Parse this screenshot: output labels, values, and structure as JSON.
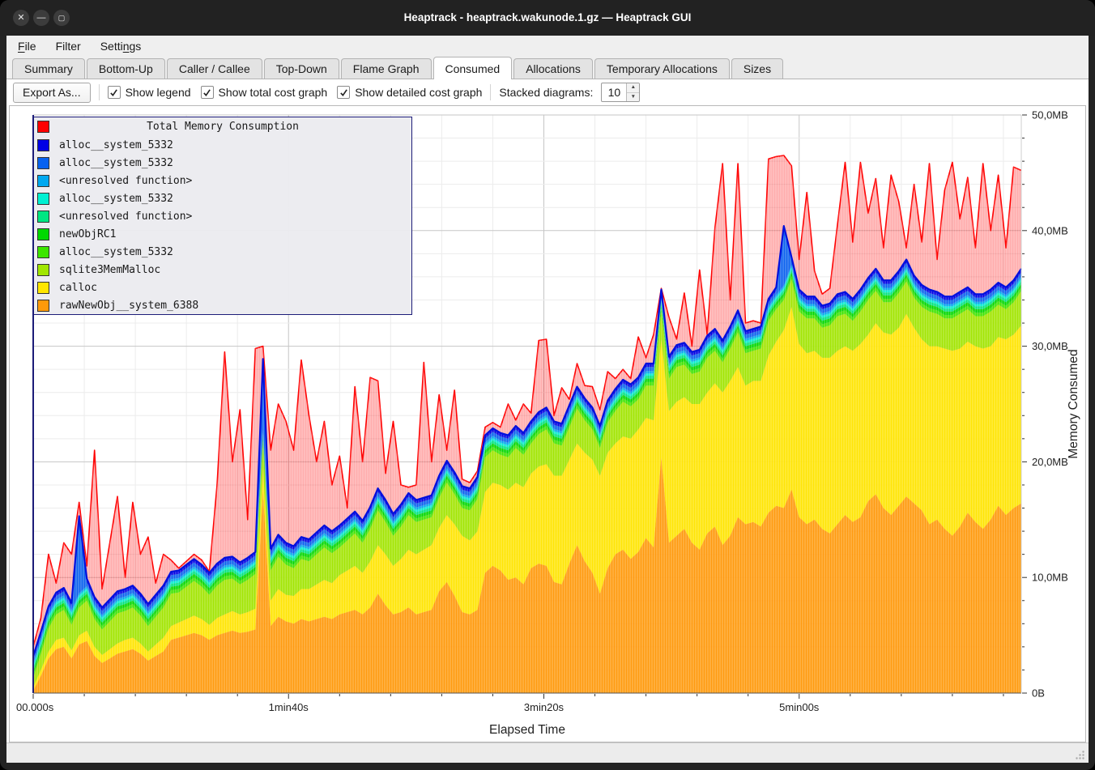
{
  "window": {
    "title": "Heaptrack - heaptrack.wakunode.1.gz — Heaptrack GUI",
    "controls": [
      {
        "name": "close",
        "glyph": "✕"
      },
      {
        "name": "minimize",
        "glyph": "—"
      },
      {
        "name": "maximize",
        "glyph": "▢"
      }
    ]
  },
  "menu": {
    "items": [
      {
        "name": "file",
        "pre": "",
        "key": "F",
        "post": "ile"
      },
      {
        "name": "filter",
        "pre": "Filter",
        "key": "",
        "post": ""
      },
      {
        "name": "settings",
        "pre": "Setti",
        "key": "n",
        "post": "gs"
      }
    ]
  },
  "tabs": {
    "active": "Consumed",
    "items": [
      "Summary",
      "Bottom-Up",
      "Caller / Callee",
      "Top-Down",
      "Flame Graph",
      "Consumed",
      "Allocations",
      "Temporary Allocations",
      "Sizes"
    ]
  },
  "toolbar": {
    "export_label": "Export As...",
    "checkboxes": [
      {
        "label": "Show legend",
        "checked": true
      },
      {
        "label": "Show total cost graph",
        "checked": true
      },
      {
        "label": "Show detailed cost graph",
        "checked": true
      }
    ],
    "stacked_label": "Stacked diagrams:",
    "stacked_value": "10"
  },
  "chart_data": {
    "type": "area",
    "stacked": true,
    "title": "Total Memory Consumption",
    "xlabel": "Elapsed Time",
    "ylabel": "Memory Consumed",
    "x_start": 0,
    "x_step": 3,
    "ylim_mb": [
      0,
      50
    ],
    "grid": {
      "minor_mb": 2,
      "major_mb": 10,
      "minor_s": 20,
      "major_s": 100
    },
    "x_ticks": [
      [
        0,
        "00.000s"
      ],
      [
        100,
        "1min40s"
      ],
      [
        200,
        "3min20s"
      ],
      [
        300,
        "5min00s"
      ]
    ],
    "y_ticks": [
      [
        0,
        "0B"
      ],
      [
        10,
        "10,0MB"
      ],
      [
        20,
        "20,0MB"
      ],
      [
        30,
        "30,0MB"
      ],
      [
        40,
        "40,0MB"
      ],
      [
        50,
        "50,0MB"
      ]
    ],
    "total": {
      "name": "Total Memory Consumption",
      "color": "#ff0000",
      "values": [
        4,
        6.5,
        12,
        9.5,
        13,
        12,
        16.5,
        11,
        21,
        9,
        13,
        17,
        10,
        16.5,
        12,
        13.5,
        9.5,
        12,
        11.5,
        10.8,
        11.4,
        12,
        11.5,
        10.5,
        18,
        29.5,
        20,
        24.5,
        15,
        29.8,
        30,
        21,
        25,
        23.5,
        21,
        28.8,
        24,
        20,
        23.5,
        18,
        20.5,
        16,
        26.5,
        20,
        27.3,
        27,
        19,
        23.5,
        18,
        17.8,
        18,
        28.6,
        20,
        25.8,
        21,
        26.2,
        18.5,
        18.2,
        19.2,
        23,
        23.4,
        23,
        25,
        23.6,
        25,
        24.2,
        30.5,
        30.6,
        24,
        26.4,
        25.4,
        28.5,
        26.6,
        26.5,
        24.5,
        27.8,
        27.2,
        28,
        27.2,
        30.8,
        29,
        31,
        35,
        32.5,
        30.6,
        34.6,
        30,
        36.6,
        31,
        40.2,
        45.8,
        34,
        45.8,
        32,
        32.2,
        32,
        46.2,
        46.4,
        46.5,
        45.6,
        37.5,
        43.3,
        36.5,
        34.5,
        35,
        40.5,
        45.9,
        39,
        45.9,
        41.5,
        44.5,
        38.5,
        44.8,
        42.5,
        38.5,
        44,
        39,
        45.8,
        37.5,
        43.5,
        45.9,
        41,
        44.6,
        38.5,
        45.8,
        40,
        44.8,
        38.5,
        45.5,
        45.2
      ]
    },
    "series": [
      {
        "name": "rawNewObj__system_6388",
        "color": "#ff9a0a",
        "values": [
          0.2,
          1.5,
          3.0,
          3.8,
          4.0,
          3.0,
          4.2,
          4.5,
          3.2,
          2.6,
          3.0,
          3.4,
          3.6,
          3.8,
          3.4,
          2.8,
          3.2,
          3.6,
          4.6,
          4.8,
          5.0,
          5.2,
          5.0,
          4.6,
          5.0,
          5.2,
          5.4,
          5.2,
          5.3,
          5.5,
          17.5,
          5.8,
          6.6,
          6.2,
          6.0,
          6.4,
          6.2,
          6.4,
          6.6,
          6.4,
          6.8,
          7.0,
          7.2,
          6.8,
          7.4,
          8.6,
          7.6,
          6.8,
          7.0,
          7.4,
          6.8,
          7.0,
          7.2,
          8.8,
          9.6,
          8.4,
          7.0,
          6.8,
          7.2,
          10.4,
          11.0,
          10.6,
          9.8,
          10.0,
          9.4,
          10.8,
          11.2,
          11.0,
          9.6,
          9.4,
          11.2,
          12.8,
          11.4,
          10.4,
          8.6,
          10.8,
          12.0,
          12.4,
          11.6,
          12.2,
          13.4,
          12.6,
          20.4,
          13.0,
          13.6,
          14.2,
          13.0,
          12.4,
          13.8,
          14.4,
          12.8,
          13.6,
          15.2,
          14.6,
          14.8,
          14.4,
          15.6,
          16.2,
          16.0,
          17.6,
          15.2,
          14.6,
          15.0,
          14.2,
          13.8,
          14.6,
          15.4,
          14.8,
          15.2,
          16.6,
          17.2,
          16.0,
          15.4,
          16.2,
          17.0,
          16.4,
          15.8,
          14.6,
          15.0,
          14.2,
          13.6,
          14.4,
          15.6,
          14.8,
          14.2,
          15.0,
          16.2,
          15.4,
          16.0,
          16.4
        ]
      },
      {
        "name": "calloc",
        "color": "#ffe600",
        "values": [
          0.3,
          0.5,
          0.6,
          0.8,
          0.8,
          0.7,
          0.8,
          0.9,
          0.8,
          0.7,
          0.8,
          0.9,
          1.0,
          1.0,
          0.9,
          0.8,
          1.0,
          1.2,
          1.2,
          1.3,
          1.4,
          1.5,
          1.4,
          1.3,
          1.5,
          1.6,
          1.7,
          1.6,
          1.7,
          1.8,
          2.0,
          2.2,
          2.4,
          2.3,
          2.4,
          2.6,
          2.8,
          3.0,
          3.2,
          3.1,
          3.4,
          3.6,
          3.8,
          3.6,
          4.0,
          4.2,
          4.4,
          4.2,
          4.6,
          5.0,
          5.2,
          5.4,
          5.6,
          5.5,
          5.8,
          6.2,
          6.6,
          6.4,
          6.8,
          7.0,
          7.2,
          7.4,
          7.8,
          8.2,
          8.4,
          8.2,
          8.4,
          8.8,
          9.2,
          9.4,
          9.0,
          8.8,
          9.4,
          9.8,
          10.2,
          10.0,
          9.6,
          9.8,
          10.4,
          10.6,
          10.4,
          11.0,
          10.2,
          11.4,
          11.6,
          11.4,
          12.0,
          12.6,
          12.2,
          12.4,
          13.2,
          13.4,
          13.0,
          12.0,
          12.2,
          12.6,
          13.6,
          14.2,
          15.4,
          15.8,
          15.0,
          14.8,
          14.6,
          14.8,
          15.2,
          15.0,
          14.6,
          14.8,
          15.0,
          14.4,
          14.8,
          15.2,
          15.6,
          15.4,
          15.8,
          15.2,
          14.8,
          15.4,
          15.0,
          15.6,
          16.0,
          15.4,
          14.8,
          15.2,
          15.6,
          15.0,
          14.6,
          15.2,
          15.0,
          15.4
        ]
      },
      {
        "name": "sqlite3MemMalloc",
        "color": "#a0e600",
        "values": [
          0.8,
          1.4,
          2.0,
          2.2,
          2.4,
          2.2,
          2.4,
          2.6,
          2.4,
          2.2,
          2.4,
          2.6,
          2.5,
          2.6,
          2.4,
          2.2,
          2.4,
          2.6,
          2.8,
          2.6,
          2.8,
          3.0,
          2.8,
          2.6,
          2.8,
          3.0,
          2.8,
          2.6,
          2.8,
          3.0,
          2.0,
          2.6,
          2.8,
          2.6,
          2.4,
          2.6,
          2.4,
          2.6,
          2.8,
          2.6,
          2.4,
          2.6,
          2.8,
          2.6,
          2.8,
          3.0,
          2.8,
          2.6,
          2.8,
          3.0,
          2.8,
          2.6,
          2.4,
          2.6,
          2.8,
          2.6,
          2.4,
          2.6,
          2.8,
          3.0,
          2.8,
          2.6,
          2.8,
          3.0,
          2.8,
          2.6,
          2.8,
          3.0,
          2.8,
          2.6,
          2.8,
          3.0,
          2.8,
          2.6,
          2.4,
          2.6,
          2.8,
          3.0,
          2.8,
          2.6,
          2.8,
          3.0,
          2.4,
          2.8,
          3.0,
          2.8,
          2.6,
          2.8,
          3.0,
          2.8,
          2.6,
          2.8,
          3.0,
          2.8,
          2.6,
          2.8,
          3.0,
          2.8,
          2.6,
          2.4,
          2.8,
          3.0,
          2.8,
          2.6,
          2.8,
          3.0,
          2.8,
          2.6,
          2.8,
          3.0,
          2.8,
          2.6,
          2.8,
          3.0,
          2.8,
          2.6,
          2.8,
          3.0,
          2.8,
          2.6,
          2.8,
          3.0,
          2.8,
          2.6,
          2.8,
          3.0,
          2.8,
          2.6,
          2.8,
          3.0
        ]
      },
      {
        "name": "alloc__system_5332",
        "color": "#3ce600",
        "const": 0.3
      },
      {
        "name": "newObjRC1",
        "color": "#00d900",
        "const": 0.3
      },
      {
        "name": "<unresolved function>",
        "color": "#00e682",
        "const": 0.25
      },
      {
        "name": "alloc__system_5332",
        "color": "#00f0d2",
        "const": 0.2
      },
      {
        "name": "<unresolved function>",
        "color": "#00a8f0",
        "const": 0.2
      },
      {
        "name": "alloc__system_5332",
        "color": "#0862f0",
        "const": 0.35,
        "spikes": [
          [
            6,
            6
          ],
          [
            30,
            5.5
          ],
          [
            98,
            4.5
          ]
        ]
      },
      {
        "name": "alloc__system_5332",
        "color": "#0000e6",
        "const": 0.3
      }
    ]
  }
}
